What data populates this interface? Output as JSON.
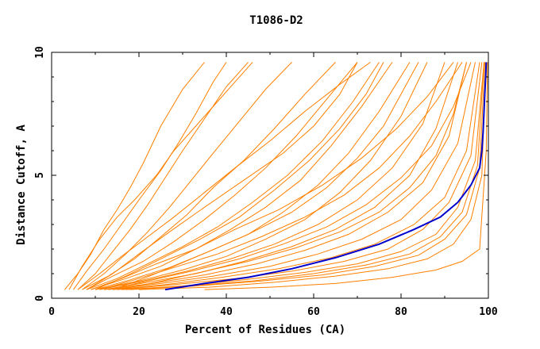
{
  "chart_data": {
    "type": "line",
    "title": "T1086-D2",
    "xlabel": "Percent of Residues (CA)",
    "ylabel": "Distance Cutoff, A",
    "xlim": [
      0,
      100
    ],
    "ylim": [
      0,
      10
    ],
    "xticks": [
      "0",
      "20",
      "40",
      "60",
      "80",
      "100"
    ],
    "yticks": [
      "0",
      "5",
      "10"
    ],
    "grid": false,
    "legend": "none",
    "colors": {
      "models": "#ff8000",
      "highlight": "#0000cc",
      "frame": "#000000"
    },
    "highlight_series": {
      "x": [
        26,
        35,
        45,
        55,
        65,
        75,
        83,
        89,
        93,
        96,
        98,
        98.5,
        98.8,
        99,
        99.2,
        99.4,
        99.5
      ],
      "y": [
        0.35,
        0.6,
        0.85,
        1.2,
        1.65,
        2.2,
        2.8,
        3.3,
        3.9,
        4.6,
        5.3,
        6.0,
        6.8,
        7.6,
        8.4,
        9.1,
        9.6
      ]
    },
    "series": [
      {
        "x": [
          3,
          6,
          9,
          12,
          15,
          18,
          21,
          25,
          30,
          35
        ],
        "y": [
          0.35,
          1.0,
          1.8,
          2.8,
          3.6,
          4.5,
          5.5,
          7.0,
          8.5,
          9.6
        ]
      },
      {
        "x": [
          5,
          8,
          12,
          16,
          20,
          25,
          29,
          33,
          37,
          40
        ],
        "y": [
          0.35,
          1.1,
          2.0,
          3.0,
          4.0,
          5.2,
          6.3,
          7.5,
          8.8,
          9.6
        ]
      },
      {
        "x": [
          6,
          10,
          14,
          18,
          22,
          26,
          30,
          35,
          40,
          45
        ],
        "y": [
          0.35,
          1.0,
          1.9,
          2.8,
          3.8,
          4.9,
          6.0,
          7.3,
          8.6,
          9.6
        ]
      },
      {
        "x": [
          7,
          12,
          17,
          22,
          27,
          32,
          37,
          43,
          49,
          55
        ],
        "y": [
          0.35,
          1.0,
          1.8,
          2.7,
          3.7,
          4.8,
          5.9,
          7.2,
          8.5,
          9.6
        ]
      },
      {
        "x": [
          7,
          13,
          19,
          25,
          31,
          37,
          44,
          51,
          58,
          65
        ],
        "y": [
          0.35,
          0.9,
          1.6,
          2.5,
          3.4,
          4.5,
          5.6,
          6.9,
          8.3,
          9.6
        ]
      },
      {
        "x": [
          8,
          14,
          21,
          28,
          35,
          42,
          49,
          56,
          63,
          70
        ],
        "y": [
          0.35,
          0.9,
          1.5,
          2.3,
          3.2,
          4.2,
          5.3,
          6.6,
          8.1,
          9.6
        ]
      },
      {
        "x": [
          8,
          15,
          22,
          30,
          38,
          46,
          54,
          62,
          69,
          75
        ],
        "y": [
          0.35,
          0.8,
          1.4,
          2.1,
          2.9,
          3.9,
          5.0,
          6.4,
          8.0,
          9.6
        ]
      },
      {
        "x": [
          9,
          17,
          25,
          33,
          41,
          49,
          57,
          64,
          71,
          78
        ],
        "y": [
          0.35,
          0.8,
          1.3,
          2.0,
          2.8,
          3.7,
          4.8,
          6.2,
          7.8,
          9.6
        ]
      },
      {
        "x": [
          10,
          18,
          27,
          36,
          45,
          53,
          61,
          68,
          75,
          82
        ],
        "y": [
          0.35,
          0.75,
          1.25,
          1.9,
          2.6,
          3.5,
          4.6,
          5.9,
          7.6,
          9.6
        ]
      },
      {
        "x": [
          10,
          20,
          30,
          40,
          49,
          58,
          66,
          73,
          80,
          86
        ],
        "y": [
          0.35,
          0.7,
          1.15,
          1.7,
          2.4,
          3.2,
          4.3,
          5.6,
          7.4,
          9.6
        ]
      },
      {
        "x": [
          11,
          21,
          31,
          41,
          51,
          61,
          70,
          78,
          85,
          90
        ],
        "y": [
          0.35,
          0.7,
          1.1,
          1.6,
          2.2,
          3.0,
          4.0,
          5.3,
          7.1,
          9.6
        ]
      },
      {
        "x": [
          12,
          22,
          33,
          44,
          55,
          65,
          74,
          82,
          88,
          93
        ],
        "y": [
          0.35,
          0.65,
          1.0,
          1.5,
          2.1,
          2.8,
          3.7,
          5.0,
          6.9,
          9.6
        ]
      },
      {
        "x": [
          12,
          23,
          35,
          47,
          58,
          68,
          77,
          85,
          91,
          95
        ],
        "y": [
          0.35,
          0.6,
          0.95,
          1.4,
          1.95,
          2.6,
          3.5,
          4.7,
          6.6,
          9.6
        ]
      },
      {
        "x": [
          13,
          25,
          37,
          50,
          61,
          71,
          80,
          87,
          93,
          97
        ],
        "y": [
          0.35,
          0.6,
          0.9,
          1.3,
          1.8,
          2.4,
          3.2,
          4.4,
          6.3,
          9.6
        ]
      },
      {
        "x": [
          14,
          26,
          39,
          52,
          64,
          74,
          83,
          90,
          95,
          98
        ],
        "y": [
          0.35,
          0.55,
          0.85,
          1.2,
          1.65,
          2.2,
          3.0,
          4.1,
          6.0,
          9.6
        ]
      },
      {
        "x": [
          15,
          28,
          42,
          55,
          67,
          77,
          85,
          91,
          96,
          98.5
        ],
        "y": [
          0.35,
          0.55,
          0.8,
          1.1,
          1.5,
          2.0,
          2.8,
          3.9,
          5.8,
          9.6
        ]
      },
      {
        "x": [
          16,
          30,
          44,
          58,
          70,
          80,
          88,
          93,
          97,
          99
        ],
        "y": [
          0.35,
          0.5,
          0.75,
          1.05,
          1.4,
          1.9,
          2.6,
          3.7,
          5.6,
          9.6
        ]
      },
      {
        "x": [
          17,
          31,
          46,
          60,
          72,
          82,
          89,
          94,
          97.5,
          99
        ],
        "y": [
          0.35,
          0.5,
          0.7,
          1.0,
          1.35,
          1.8,
          2.5,
          3.5,
          5.4,
          9.6
        ]
      },
      {
        "x": [
          18,
          33,
          48,
          62,
          74,
          84,
          90,
          95,
          98,
          99.2
        ],
        "y": [
          0.35,
          0.5,
          0.7,
          0.95,
          1.3,
          1.75,
          2.4,
          3.4,
          5.3,
          9.6
        ]
      },
      {
        "x": [
          20,
          36,
          51,
          65,
          77,
          86,
          92,
          96,
          98.5,
          99.4
        ],
        "y": [
          0.35,
          0.45,
          0.65,
          0.9,
          1.2,
          1.6,
          2.2,
          3.2,
          5.0,
          9.6
        ]
      },
      {
        "x": [
          4,
          7,
          11,
          15,
          19,
          24,
          28,
          33,
          38,
          42,
          46
        ],
        "y": [
          0.35,
          1.3,
          2.4,
          3.3,
          4.0,
          5.0,
          6.0,
          7.0,
          8.0,
          8.8,
          9.6
        ]
      },
      {
        "x": [
          6,
          11,
          16,
          22,
          28,
          35,
          42,
          50,
          58,
          66,
          73
        ],
        "y": [
          0.35,
          1.0,
          1.7,
          2.5,
          3.3,
          4.3,
          5.3,
          6.4,
          7.6,
          8.7,
          9.6
        ]
      },
      {
        "x": [
          9,
          16,
          24,
          33,
          42,
          52,
          62,
          71,
          79,
          86,
          92
        ],
        "y": [
          0.35,
          0.8,
          1.4,
          2.0,
          2.8,
          3.6,
          4.6,
          5.7,
          6.9,
          8.2,
          9.6
        ]
      },
      {
        "x": [
          11,
          19,
          28,
          38,
          48,
          58,
          67,
          75,
          82,
          88,
          94
        ],
        "y": [
          0.35,
          0.75,
          1.25,
          1.8,
          2.5,
          3.3,
          4.2,
          5.3,
          6.6,
          8.0,
          9.6
        ]
      },
      {
        "x": [
          13,
          22,
          32,
          43,
          53,
          63,
          72,
          80,
          87,
          92,
          96
        ],
        "y": [
          0.35,
          0.7,
          1.1,
          1.6,
          2.2,
          2.9,
          3.8,
          4.9,
          6.2,
          7.8,
          9.6
        ]
      },
      {
        "x": [
          35,
          50,
          65,
          78,
          88,
          94,
          98,
          99.5,
          99.8
        ],
        "y": [
          0.35,
          0.45,
          0.6,
          0.85,
          1.15,
          1.5,
          2.0,
          6.0,
          9.6
        ]
      },
      {
        "x": [
          8,
          14,
          20,
          27,
          35,
          44,
          53,
          60,
          66,
          70
        ],
        "y": [
          0.35,
          1.0,
          1.8,
          2.7,
          3.7,
          4.8,
          5.9,
          7.0,
          8.3,
          9.6
        ]
      },
      {
        "x": [
          10,
          17,
          25,
          34,
          43,
          51,
          59,
          66,
          72,
          76
        ],
        "y": [
          0.35,
          0.9,
          1.6,
          2.4,
          3.3,
          4.4,
          5.6,
          6.9,
          8.3,
          9.6
        ]
      },
      {
        "x": [
          15,
          24,
          34,
          45,
          56,
          66,
          75,
          82,
          88,
          92,
          95
        ],
        "y": [
          0.35,
          0.65,
          1.05,
          1.5,
          2.05,
          2.7,
          3.5,
          4.5,
          5.8,
          7.5,
          9.6
        ]
      },
      {
        "x": [
          14,
          21,
          28,
          36,
          45,
          55,
          63,
          70,
          76,
          80,
          84
        ],
        "y": [
          0.35,
          0.8,
          1.3,
          1.9,
          2.6,
          3.5,
          4.5,
          5.7,
          7.0,
          8.3,
          9.6
        ]
      }
    ]
  }
}
